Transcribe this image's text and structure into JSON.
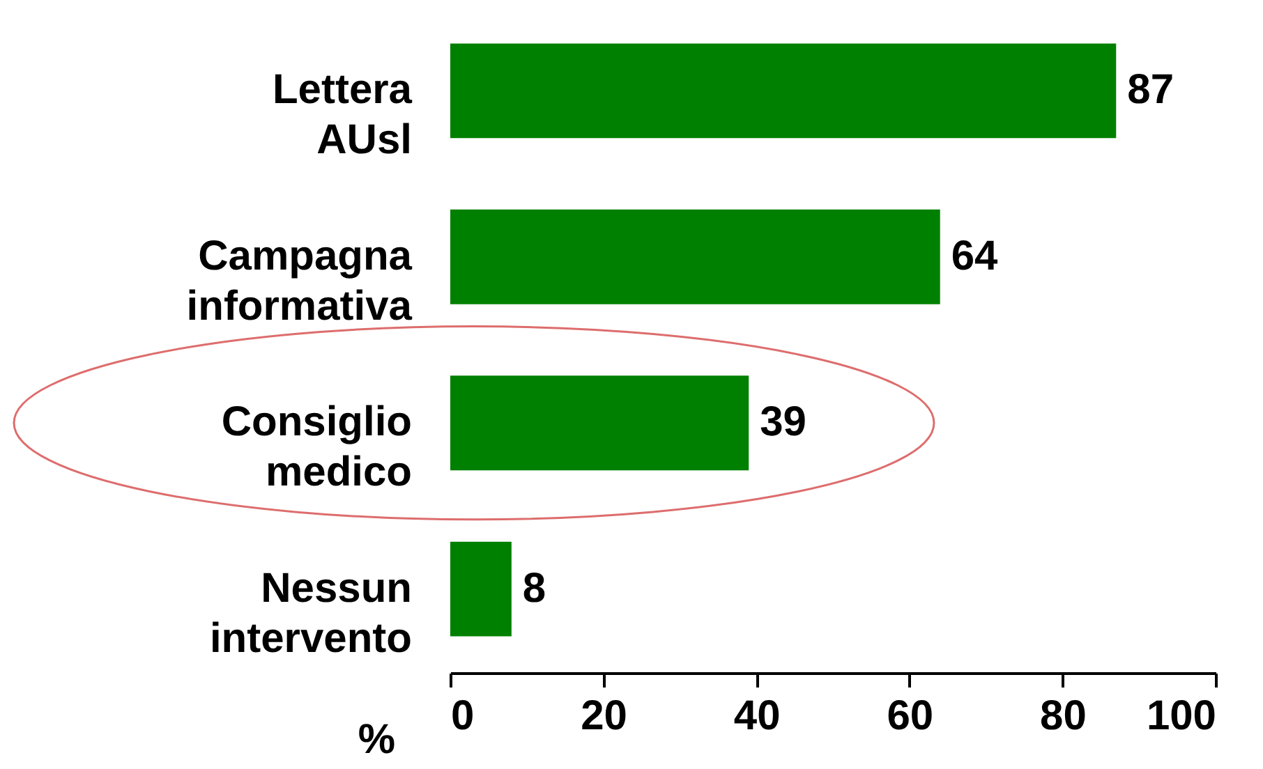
{
  "chart_data": {
    "type": "bar",
    "orientation": "horizontal",
    "categories": [
      "Lettera AUsl",
      "Campagna informativa",
      "Consiglio medico",
      "Nessun intervento"
    ],
    "values": [
      87,
      64,
      39,
      8
    ],
    "color": "#008000",
    "xlabel": "%",
    "xlim": [
      0,
      100
    ],
    "xticks": [
      0,
      20,
      40,
      60,
      80,
      100
    ],
    "data_labels": true
  }
}
